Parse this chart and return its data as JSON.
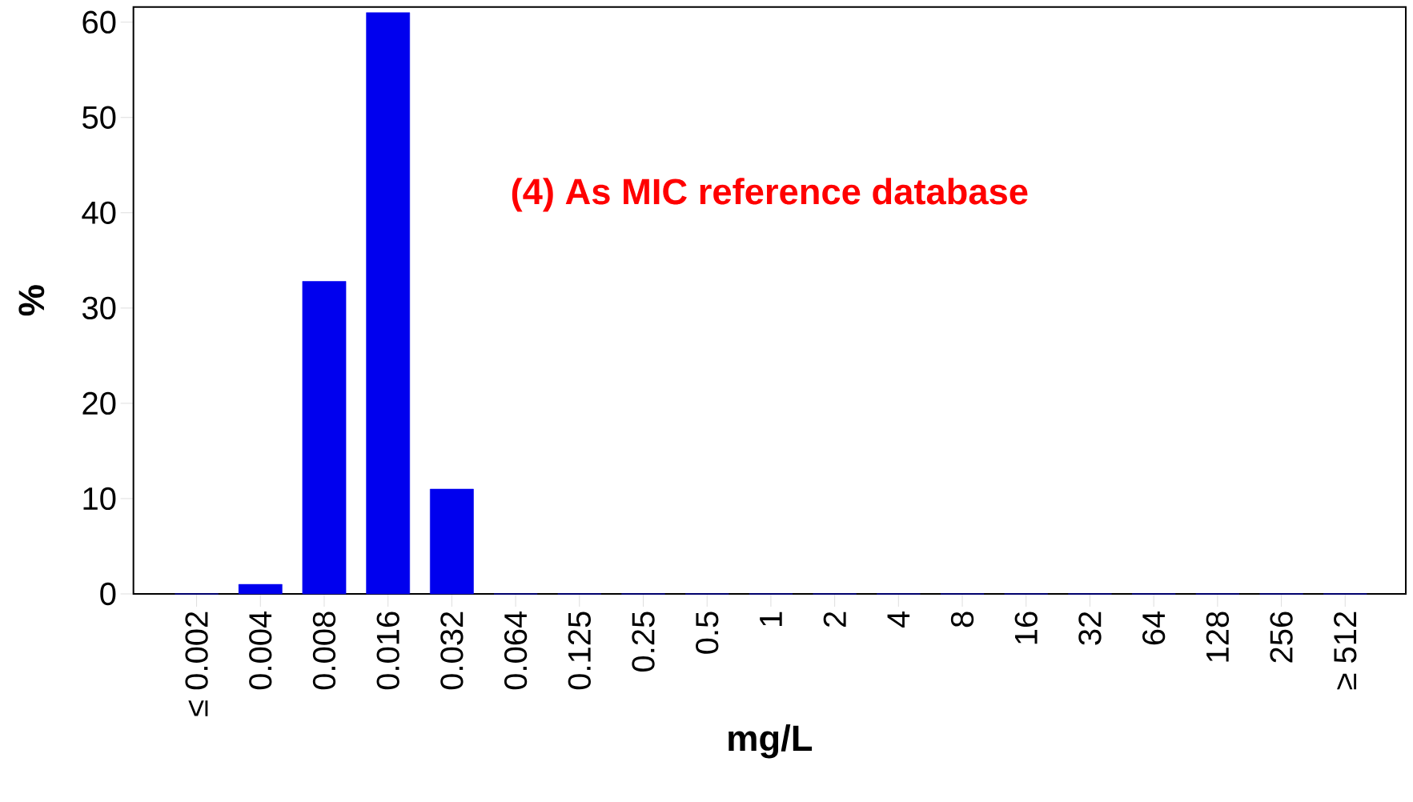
{
  "chart_data": {
    "type": "bar",
    "categories": [
      "≤ 0.002",
      "0.004",
      "0.008",
      "0.016",
      "0.032",
      "0.064",
      "0.125",
      "0.25",
      "0.5",
      "1",
      "2",
      "4",
      "8",
      "16",
      "32",
      "64",
      "128",
      "256",
      "≥ 512"
    ],
    "values": [
      0,
      1,
      32.8,
      61,
      11,
      0,
      0,
      0,
      0,
      0,
      0,
      0,
      0,
      0,
      0,
      0,
      0,
      0,
      0
    ],
    "color": "#0000ee",
    "xlabel": "mg/L",
    "ylabel": "%",
    "ylim": [
      0,
      61.6
    ],
    "yticks": [
      0,
      10,
      20,
      30,
      40,
      50,
      60
    ],
    "annotations": [
      "(4) As MIC reference database"
    ],
    "grid": false
  }
}
